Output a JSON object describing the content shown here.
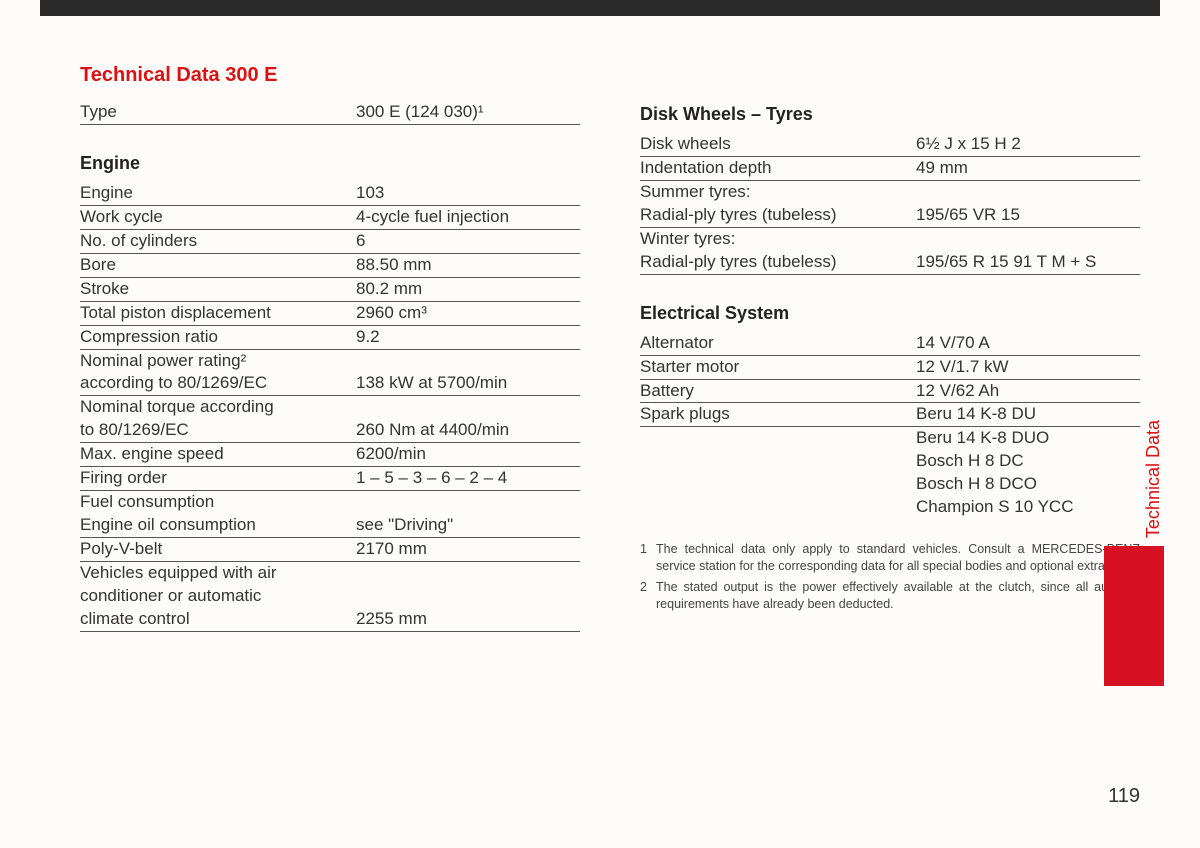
{
  "title": "Technical Data 300 E",
  "type_row": {
    "label": "Type",
    "value": "300 E (124 030)¹"
  },
  "engine": {
    "heading": "Engine",
    "rows": [
      {
        "label": "Engine",
        "value": "103"
      },
      {
        "label": "Work cycle",
        "value": "4-cycle fuel injection"
      },
      {
        "label": "No. of cylinders",
        "value": "6"
      },
      {
        "label": "Bore",
        "value": "88.50 mm"
      },
      {
        "label": "Stroke",
        "value": "80.2 mm"
      },
      {
        "label": "Total piston displacement",
        "value": "2960 cm³"
      },
      {
        "label": "Compression ratio",
        "value": "9.2"
      },
      {
        "label": "Nominal power rating²\naccording to 80/1269/EC",
        "value": "138 kW at 5700/min"
      },
      {
        "label": "Nominal torque according\nto 80/1269/EC",
        "value": "260 Nm at 4400/min"
      },
      {
        "label": "Max. engine speed",
        "value": "6200/min"
      },
      {
        "label": "Firing order",
        "value": "1 – 5 – 3 – 6 – 2 – 4"
      },
      {
        "label": "Fuel consumption\nEngine oil consumption",
        "value": "see \"Driving\""
      },
      {
        "label": "Poly-V-belt",
        "value": "2170 mm"
      },
      {
        "label": "Vehicles equipped with air\nconditioner or automatic\nclimate control",
        "value": "2255 mm"
      }
    ]
  },
  "wheels": {
    "heading": "Disk Wheels – Tyres",
    "rows": [
      {
        "label": "Disk wheels",
        "value": "6½ J x 15 H 2"
      },
      {
        "label": "Indentation depth",
        "value": "49 mm"
      },
      {
        "label": "Summer tyres:",
        "value": "",
        "noborder": true
      },
      {
        "label": "Radial-ply tyres (tubeless)",
        "value": "195/65 VR 15"
      },
      {
        "label": "Winter tyres:",
        "value": "",
        "noborder": true
      },
      {
        "label": "Radial-ply tyres (tubeless)",
        "value": "195/65 R 15 91 T M + S"
      }
    ]
  },
  "electrical": {
    "heading": "Electrical System",
    "rows": [
      {
        "label": "Alternator",
        "value": "14 V/70 A"
      },
      {
        "label": "Starter motor",
        "value": "12 V/1.7 kW"
      },
      {
        "label": "Battery",
        "value": "12 V/62 Ah"
      },
      {
        "label": "Spark plugs",
        "value": "Beru 14 K-8 DU"
      },
      {
        "label": "",
        "value": "Beru 14 K-8 DUO",
        "noborder": true
      },
      {
        "label": "",
        "value": "Bosch H 8 DC",
        "noborder": true
      },
      {
        "label": "",
        "value": "Bosch H 8 DCO",
        "noborder": true
      },
      {
        "label": "",
        "value": "Champion S 10 YCC",
        "noborder": true
      }
    ]
  },
  "footnotes": [
    {
      "num": "1",
      "text": "The technical data only apply to standard vehicles. Consult a MERCEDES-BENZ service station for the corresponding data for all special bodies and optional extras."
    },
    {
      "num": "2",
      "text": "The stated output is the power effectively available at the clutch, since all auxiliary requirements have already been deducted."
    }
  ],
  "side_tab": "Technical Data",
  "page_number": "119",
  "colors": {
    "accent": "#d11",
    "block": "#d81122",
    "text": "#333",
    "rule": "#555",
    "background": "#fdfcfa"
  }
}
